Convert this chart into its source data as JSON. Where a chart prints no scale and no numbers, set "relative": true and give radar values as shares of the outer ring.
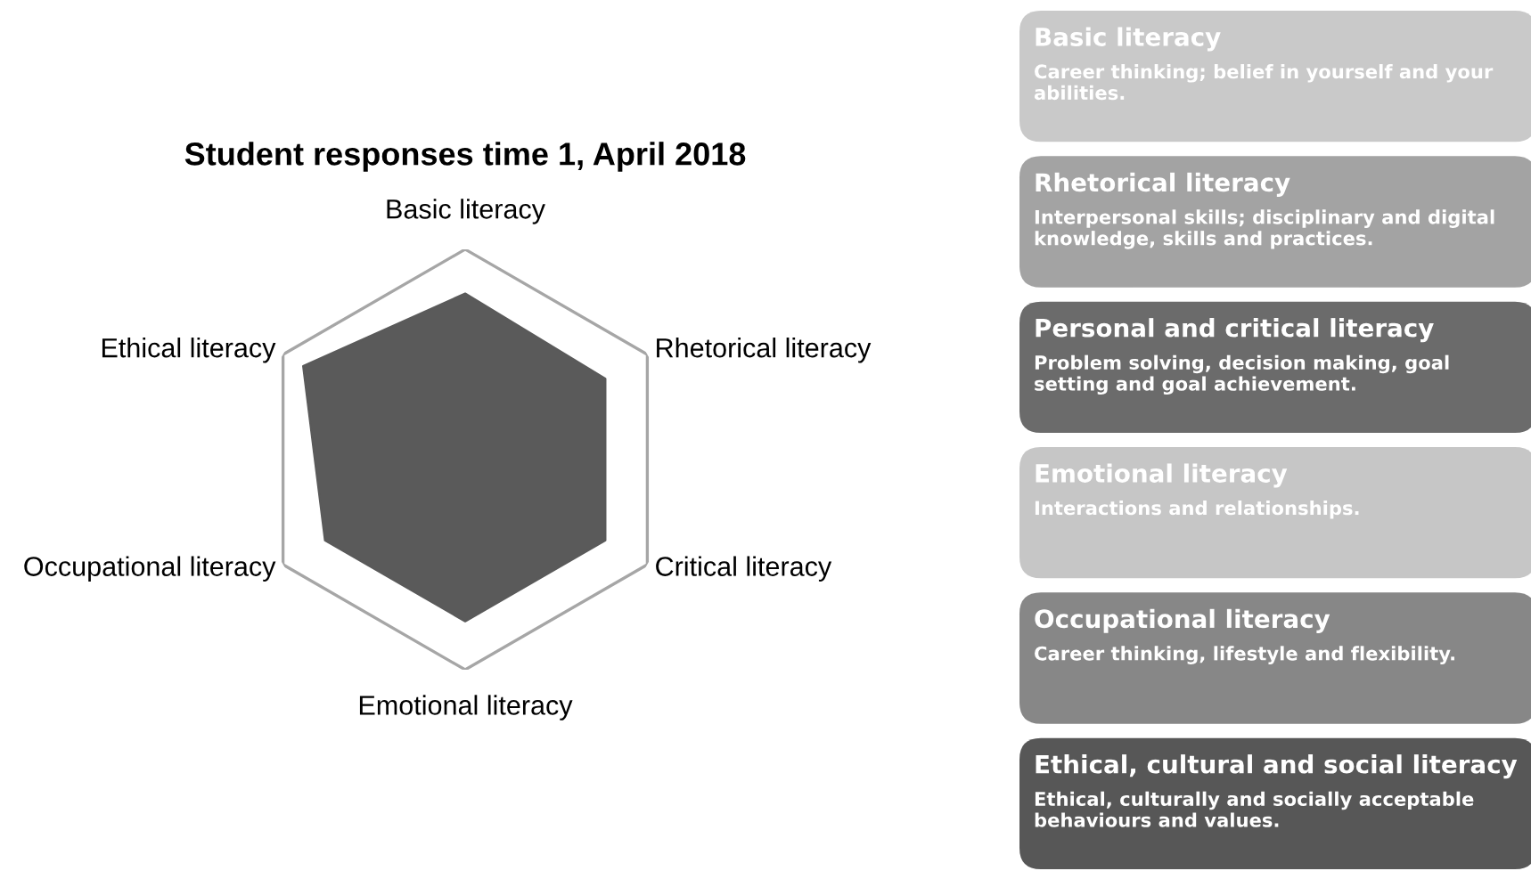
{
  "chart_data": [
    {
      "type": "radar",
      "title": "Student responses time 1, April 2018",
      "categories": [
        "Basic literacy",
        "Rhetorical literacy",
        "Critical literacy",
        "Emotional literacy",
        "Occupational literacy",
        "Ethical literacy"
      ],
      "relative": true,
      "grid": true,
      "series": [
        {
          "color": "#5a5a5a",
          "values": [
            0.79,
            0.77,
            0.77,
            0.77,
            0.77,
            0.89
          ]
        }
      ]
    },
    {
      "type": "other",
      "categories": [
        "Basic literacy",
        "Rhetorical literacy",
        "Personal and critical literacy",
        "Emotional literacy",
        "Occupational literacy",
        "Ethical, cultural and social literacy"
      ],
      "annotations": [
        "Career thinking; belief in yourself and your abilities.",
        "Interpersonal skills; disciplinary and digital knowledge, skills and practices.",
        "Problem solving, decision making, goal setting and goal achievement.",
        "Interactions and relationships.",
        "Career thinking, lifestyle and flexibility.",
        "Ethical, culturally and socially acceptable behaviours and values."
      ],
      "colors": [
        "#c9c9c9",
        "#a3a3a3",
        "#6b6b6b",
        "#c6c6c6",
        "#878787",
        "#575757"
      ]
    }
  ]
}
